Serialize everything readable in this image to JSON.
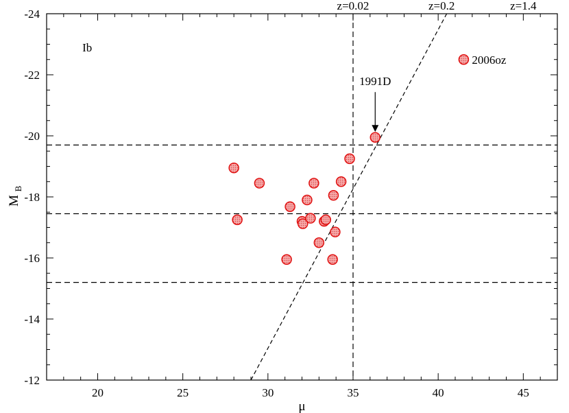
{
  "chart_data": {
    "type": "scatter",
    "title": "",
    "xlabel": "μ",
    "ylabel_main": "M",
    "ylabel_sub": "B",
    "xlim": [
      17,
      47
    ],
    "ylim": [
      -12,
      -24
    ],
    "y_axis_inverted": true,
    "grid": false,
    "x_ticks": [
      20,
      25,
      30,
      35,
      40,
      45
    ],
    "x_tick_labels": [
      "20",
      "25",
      "30",
      "35",
      "40",
      "45"
    ],
    "y_ticks": [
      -12,
      -14,
      -16,
      -18,
      -20,
      -22,
      -24
    ],
    "y_tick_labels": [
      "-12",
      "-14",
      "-16",
      "-18",
      "-20",
      "-22",
      "-24"
    ],
    "panel_label": "Ib",
    "top_labels": [
      {
        "text": "z=0.02",
        "x": 35.0
      },
      {
        "text": "z=0.2",
        "x": 40.2
      },
      {
        "text": "z=1.4",
        "x": 45.0
      }
    ],
    "horizontal_lines": [
      -19.7,
      -17.45,
      -15.2
    ],
    "vertical_lines": [
      35.0
    ],
    "diagonal_line": {
      "points": [
        [
          29.0,
          -12.0
        ],
        [
          40.5,
          -24.0
        ]
      ]
    },
    "points": [
      {
        "x": 28.0,
        "y": -18.95
      },
      {
        "x": 28.2,
        "y": -17.25
      },
      {
        "x": 29.5,
        "y": -18.45
      },
      {
        "x": 31.1,
        "y": -15.95
      },
      {
        "x": 31.3,
        "y": -17.68
      },
      {
        "x": 32.0,
        "y": -17.2
      },
      {
        "x": 32.05,
        "y": -17.12
      },
      {
        "x": 32.3,
        "y": -17.9
      },
      {
        "x": 32.5,
        "y": -17.3
      },
      {
        "x": 32.7,
        "y": -18.45
      },
      {
        "x": 33.0,
        "y": -16.5
      },
      {
        "x": 33.3,
        "y": -17.2
      },
      {
        "x": 33.4,
        "y": -17.25
      },
      {
        "x": 33.8,
        "y": -15.95
      },
      {
        "x": 33.85,
        "y": -18.05
      },
      {
        "x": 33.95,
        "y": -16.85
      },
      {
        "x": 34.3,
        "y": -18.5
      },
      {
        "x": 34.8,
        "y": -19.25
      },
      {
        "x": 36.3,
        "y": -19.95
      },
      {
        "x": 41.5,
        "y": -22.5
      }
    ],
    "annotations": [
      {
        "text": "1991D",
        "target": [
          36.3,
          -19.95
        ],
        "arrow": true
      },
      {
        "text": "2006oz",
        "target": [
          41.5,
          -22.5
        ],
        "arrow": false
      }
    ],
    "marker_fill": "#f59a9a",
    "marker_edge": "#e01010",
    "line_color": "#000000"
  }
}
